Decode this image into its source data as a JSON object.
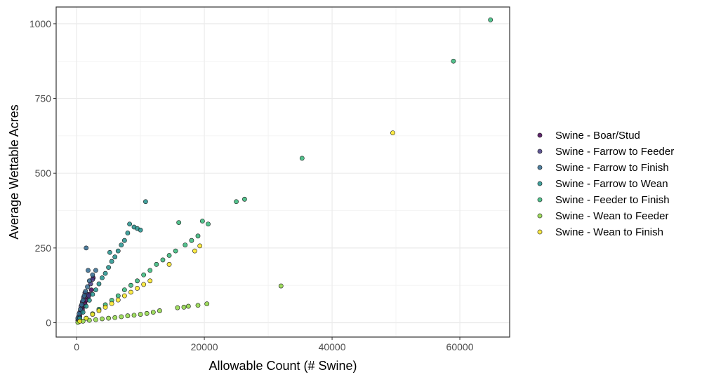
{
  "chart_data": {
    "type": "scatter",
    "title": "",
    "xlabel": "Allowable Count (# Swine)",
    "ylabel": "Average Wettable Acres",
    "xlim": [
      -3200,
      67800
    ],
    "ylim": [
      -48,
      1056
    ],
    "x_ticks": [
      0,
      20000,
      40000,
      60000
    ],
    "x_tick_labels": [
      "0",
      "20000",
      "40000",
      "60000"
    ],
    "y_ticks": [
      0,
      250,
      500,
      750,
      1000
    ],
    "y_tick_labels": [
      "0",
      "250",
      "500",
      "750",
      "1000"
    ],
    "grid": true,
    "legend_position": "right",
    "series": [
      {
        "name": "Swine - Boar/Stud",
        "color": "#440154",
        "x": [
          200,
          350,
          500,
          700,
          900,
          1100,
          1300,
          1500,
          1800,
          2000,
          2300,
          2600
        ],
        "y": [
          8,
          15,
          22,
          35,
          45,
          55,
          65,
          75,
          85,
          95,
          110,
          150
        ]
      },
      {
        "name": "Swine - Farrow to Feeder",
        "color": "#443A83",
        "x": [
          300,
          500,
          700,
          900,
          1100,
          1300,
          1600,
          1900,
          2200,
          2500
        ],
        "y": [
          20,
          35,
          55,
          70,
          85,
          100,
          95,
          90,
          130,
          145
        ]
      },
      {
        "name": "Swine - Farrow to Finish",
        "color": "#31688E",
        "x": [
          200,
          400,
          600,
          800,
          1000,
          1200,
          1400,
          1700,
          2000,
          2500,
          3000,
          1500,
          1800
        ],
        "y": [
          15,
          30,
          45,
          60,
          75,
          90,
          105,
          120,
          140,
          160,
          175,
          250,
          175
        ]
      },
      {
        "name": "Swine - Farrow to Wean",
        "color": "#21908C",
        "x": [
          500,
          1000,
          1500,
          2000,
          2500,
          3000,
          3500,
          4000,
          4500,
          5000,
          5500,
          6000,
          6500,
          7000,
          7500,
          8000,
          8300,
          9000,
          9500,
          10000,
          10800,
          5200
        ],
        "y": [
          15,
          35,
          55,
          75,
          95,
          110,
          130,
          150,
          165,
          185,
          205,
          220,
          240,
          260,
          275,
          300,
          330,
          320,
          315,
          310,
          405,
          235
        ]
      },
      {
        "name": "Swine - Feeder to Finish",
        "color": "#35B779",
        "x": [
          500,
          1500,
          2500,
          3500,
          4500,
          5500,
          6500,
          7500,
          8500,
          9500,
          10500,
          11500,
          12500,
          13500,
          14500,
          15500,
          16000,
          17000,
          18000,
          19000,
          19700,
          20600,
          25000,
          26300,
          35300,
          59000,
          64800
        ],
        "y": [
          5,
          15,
          30,
          45,
          60,
          75,
          90,
          110,
          125,
          140,
          160,
          175,
          195,
          210,
          225,
          240,
          335,
          260,
          275,
          290,
          340,
          330,
          405,
          413,
          550,
          875,
          1013
        ]
      },
      {
        "name": "Swine - Wean to Feeder",
        "color": "#8FD744",
        "x": [
          200,
          1000,
          2000,
          3000,
          4000,
          5000,
          6000,
          7000,
          8000,
          9000,
          10000,
          11000,
          12000,
          13000,
          15800,
          16800,
          17500,
          19000,
          20400,
          32000
        ],
        "y": [
          1,
          5,
          8,
          10,
          13,
          15,
          17,
          20,
          23,
          25,
          28,
          31,
          35,
          40,
          50,
          52,
          55,
          58,
          63,
          123
        ]
      },
      {
        "name": "Swine - Wean to Finish",
        "color": "#FDE725",
        "x": [
          500,
          1500,
          2500,
          3500,
          4500,
          5500,
          6500,
          7500,
          8500,
          9500,
          10500,
          11500,
          14500,
          18500,
          19300,
          49500
        ],
        "y": [
          5,
          15,
          28,
          40,
          52,
          64,
          76,
          90,
          102,
          115,
          128,
          140,
          195,
          240,
          257,
          635
        ]
      }
    ]
  }
}
